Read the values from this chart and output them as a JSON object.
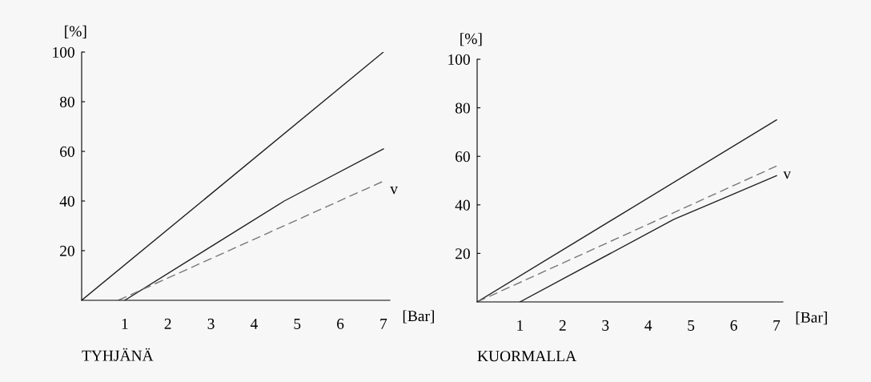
{
  "chart_data": [
    {
      "type": "line",
      "title": "TYHJÄNÄ",
      "xlabel": "[Bar]",
      "ylabel": "[%]",
      "xlim": [
        0,
        7.15
      ],
      "ylim": [
        0,
        100
      ],
      "xticks": [
        1,
        2,
        3,
        4,
        5,
        6,
        7
      ],
      "yticks": [
        20,
        40,
        60,
        80,
        100
      ],
      "grid": false,
      "legend": false,
      "series": [
        {
          "color": "#222222",
          "x": [
            0,
            7
          ],
          "values": [
            0,
            100
          ]
        },
        {
          "color": "#222222",
          "x": [
            1,
            4.7,
            7
          ],
          "values": [
            0,
            40,
            61
          ]
        },
        {
          "name": "v",
          "color": "#777777",
          "line_style": "dashed",
          "x": [
            0.85,
            7
          ],
          "values": [
            0,
            48
          ]
        }
      ]
    },
    {
      "type": "line",
      "title": "KUORMALLA",
      "xlabel": "[Bar]",
      "ylabel": "[%]",
      "xlim": [
        0,
        7.15
      ],
      "ylim": [
        0,
        100
      ],
      "xticks": [
        1,
        2,
        3,
        4,
        5,
        6,
        7
      ],
      "yticks": [
        20,
        40,
        60,
        80,
        100
      ],
      "grid": false,
      "legend": false,
      "series": [
        {
          "color": "#222222",
          "x": [
            0,
            7
          ],
          "values": [
            0,
            75
          ]
        },
        {
          "color": "#222222",
          "x": [
            1,
            4.6,
            7
          ],
          "values": [
            0,
            34,
            52
          ]
        },
        {
          "name": "v",
          "color": "#777777",
          "line_style": "dashed",
          "x": [
            0,
            7
          ],
          "values": [
            0,
            56
          ]
        }
      ]
    }
  ]
}
